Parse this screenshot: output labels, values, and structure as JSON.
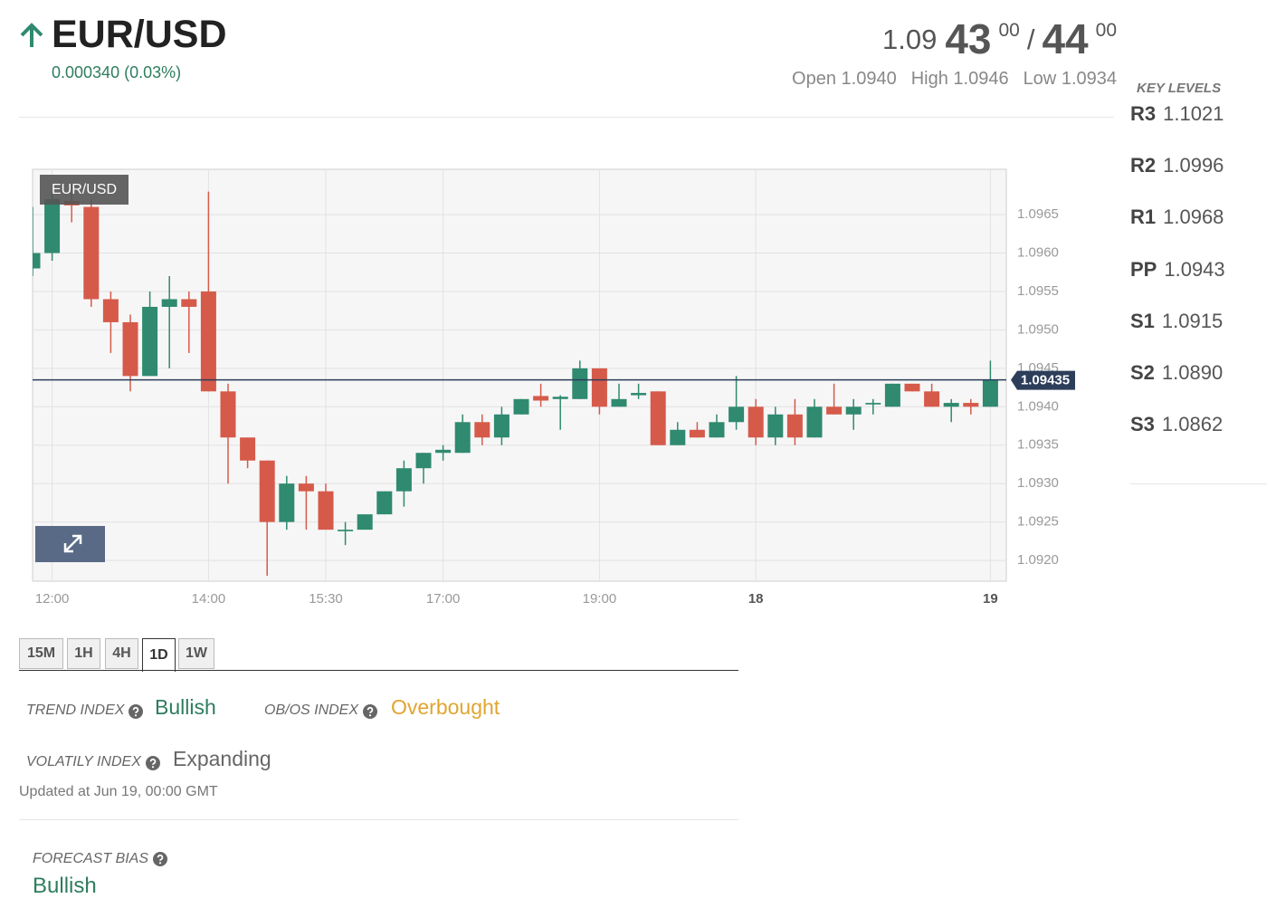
{
  "header": {
    "pair": "EUR/USD",
    "change": "0.000340 (0.03%)",
    "bid": {
      "base": "1.09",
      "pips": "43",
      "fraction": "00"
    },
    "separator": "/",
    "ask": {
      "pips": "44",
      "fraction": "00"
    },
    "ohlc": [
      {
        "label": "Open",
        "value": "1.0940"
      },
      {
        "label": "High",
        "value": "1.0946"
      },
      {
        "label": "Low",
        "value": "1.0934"
      }
    ]
  },
  "key_levels": {
    "title": "KEY LEVELS",
    "levels": [
      {
        "label": "R3",
        "value": "1.1021"
      },
      {
        "label": "R2",
        "value": "1.0996"
      },
      {
        "label": "R1",
        "value": "1.0968"
      },
      {
        "label": "PP",
        "value": "1.0943"
      },
      {
        "label": "S1",
        "value": "1.0915"
      },
      {
        "label": "S2",
        "value": "1.0890"
      },
      {
        "label": "S3",
        "value": "1.0862"
      }
    ]
  },
  "chart_data": {
    "type": "candlestick",
    "title": "EUR/USD",
    "categories": [
      null,
      "12:00",
      null,
      null,
      null,
      null,
      null,
      null,
      null,
      "14:00",
      null,
      null,
      null,
      null,
      null,
      "15:30",
      null,
      null,
      null,
      null,
      null,
      "17:00",
      null,
      null,
      null,
      null,
      null,
      null,
      null,
      "19:00",
      null,
      null,
      null,
      null,
      null,
      null,
      null,
      "18",
      null,
      null,
      null,
      null,
      null,
      null,
      null,
      null,
      null,
      null,
      null,
      "19"
    ],
    "open": [
      1.0958,
      1.096,
      1.09668,
      1.0966,
      1.0954,
      1.0951,
      1.0944,
      1.0953,
      1.0954,
      1.0955,
      1.0942,
      1.0936,
      1.0933,
      1.0925,
      1.093,
      1.0929,
      1.09238,
      1.0924,
      1.0926,
      1.0929,
      1.0932,
      1.0934,
      1.0934,
      1.0938,
      1.0936,
      1.0939,
      1.09414,
      1.0941,
      1.0941,
      1.0945,
      1.094,
      1.09415,
      1.0942,
      1.0935,
      1.0937,
      1.0936,
      1.0938,
      1.094,
      1.0936,
      1.0939,
      1.0936,
      1.094,
      1.0939,
      1.09403,
      1.094,
      1.0943,
      1.0942,
      1.094,
      1.09405,
      1.094
    ],
    "high": [
      1.0966,
      1.0968,
      1.0969,
      1.0967,
      1.0955,
      1.0952,
      1.0955,
      1.0957,
      1.0955,
      1.0968,
      1.0943,
      1.0936,
      1.0933,
      1.0931,
      1.0931,
      1.093,
      1.0925,
      1.0926,
      1.0929,
      1.0933,
      1.0934,
      1.0935,
      1.0939,
      1.0939,
      1.094,
      1.0941,
      1.0943,
      1.09415,
      1.0946,
      1.0945,
      1.0943,
      1.0943,
      1.0942,
      1.0938,
      1.0938,
      1.0939,
      1.0944,
      1.0941,
      1.094,
      1.0941,
      1.0941,
      1.0943,
      1.0941,
      1.0941,
      1.0943,
      1.0943,
      1.0943,
      1.0941,
      1.0941,
      1.0946
    ],
    "low": [
      1.0957,
      1.0959,
      1.0964,
      1.0953,
      1.0947,
      1.0942,
      1.0944,
      1.0945,
      1.0947,
      1.0942,
      1.093,
      1.0932,
      1.0918,
      1.0924,
      1.0924,
      1.0924,
      1.0922,
      1.0924,
      1.0926,
      1.0927,
      1.093,
      1.0933,
      1.0934,
      1.0935,
      1.0935,
      1.0939,
      1.094,
      1.0937,
      1.0941,
      1.0939,
      1.094,
      1.0941,
      1.0935,
      1.0935,
      1.0936,
      1.0936,
      1.0937,
      1.0935,
      1.0935,
      1.0935,
      1.0936,
      1.0939,
      1.0937,
      1.0939,
      1.094,
      1.0942,
      1.094,
      1.0938,
      1.0939,
      1.094
    ],
    "close": [
      1.096,
      1.0967,
      1.09662,
      1.0954,
      1.0951,
      1.0944,
      1.0953,
      1.0954,
      1.0953,
      1.0942,
      1.0936,
      1.0933,
      1.0925,
      1.093,
      1.0929,
      1.0924,
      1.0924,
      1.0926,
      1.0929,
      1.0932,
      1.0934,
      1.09344,
      1.0938,
      1.0936,
      1.0939,
      1.0941,
      1.09408,
      1.09413,
      1.0945,
      1.094,
      1.0941,
      1.09418,
      1.0935,
      1.0937,
      1.0936,
      1.0938,
      1.094,
      1.0936,
      1.0939,
      1.0936,
      1.094,
      1.0939,
      1.094,
      1.09405,
      1.0943,
      1.0942,
      1.094,
      1.09405,
      1.094,
      1.09435
    ],
    "up_color": "#2f8a6f",
    "down_color": "#d65a4a",
    "last_price": 1.09435,
    "last_price_color": "#2c3e5a",
    "ylim": [
      1.09173,
      1.09709
    ],
    "yticks": [
      {
        "value": 1.092,
        "label": "1.0920"
      },
      1.0925,
      {
        "value": 1.093,
        "label": "1.0930"
      },
      1.0935,
      {
        "value": 1.094,
        "label": "1.0940"
      },
      1.0945,
      {
        "value": 1.095,
        "label": "1.0950"
      },
      1.0955,
      {
        "value": 1.096,
        "label": "1.0960"
      },
      1.0965
    ],
    "grid": true
  },
  "timeframes": {
    "options": [
      "15M",
      "1H",
      "4H",
      "1D",
      "1W"
    ],
    "active_index": 3
  },
  "indices": [
    {
      "label": "TREND INDEX",
      "value": "Bullish",
      "color": "#2e7d5e"
    },
    {
      "label": "OB/OS INDEX",
      "value": "Overbought",
      "color": "#e0a531"
    },
    {
      "label": "VOLATILY INDEX",
      "value": "Expanding",
      "color": "#666666"
    }
  ],
  "updated": "Updated at Jun 19, 00:00 GMT",
  "forecast_bias": {
    "label": "FORECAST BIAS",
    "value": "Bullish",
    "color": "#2e7d5e"
  }
}
